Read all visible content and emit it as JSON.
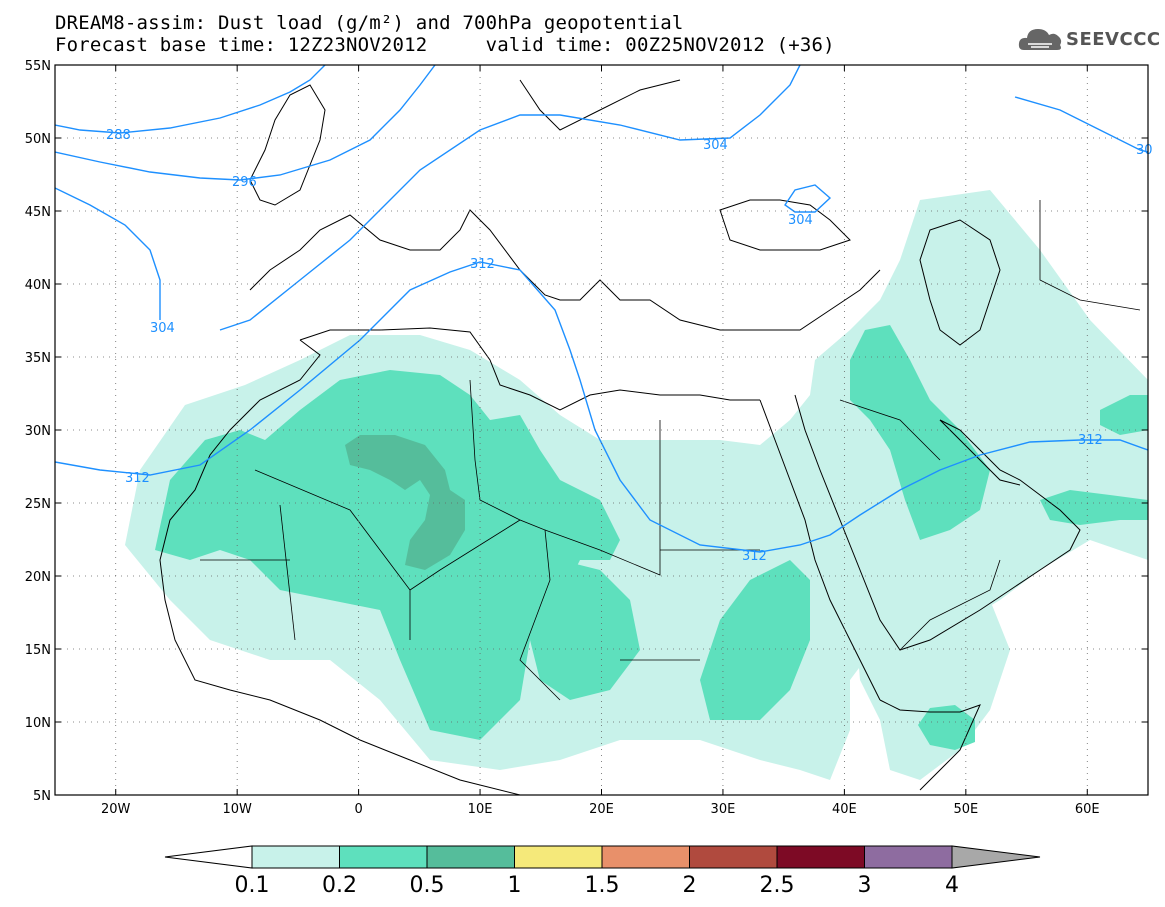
{
  "title": {
    "line1": "DREAM8-assim: Dust load (g/m²) and 700hPa geopotential",
    "line2": "Forecast base time: 12Z23NOV2012     valid time: 00Z25NOV2012 (+36)"
  },
  "logo": {
    "text": "SEEVCCC",
    "icon": "cloud-icon"
  },
  "map": {
    "lon_range": [
      -25,
      65
    ],
    "lat_range": [
      5,
      55
    ],
    "lat_ticks": [
      "55N",
      "50N",
      "45N",
      "40N",
      "35N",
      "30N",
      "25N",
      "20N",
      "15N",
      "10N",
      "5N"
    ],
    "lon_ticks": [
      "20W",
      "10W",
      "0",
      "10E",
      "20E",
      "30E",
      "40E",
      "50E",
      "60E"
    ],
    "grid": "dotted"
  },
  "contours": {
    "color": "#1e90ff",
    "labels": [
      "288",
      "296",
      "304",
      "304",
      "304",
      "312",
      "312",
      "312",
      "312",
      "30"
    ]
  },
  "colorbar": {
    "labels": [
      "0.1",
      "0.2",
      "0.5",
      "1",
      "1.5",
      "2",
      "2.5",
      "3",
      "4"
    ],
    "colors": [
      "#c8f2ea",
      "#5ee0bd",
      "#55bd9b",
      "#f5e97a",
      "#e8906a",
      "#b04a3e",
      "#7d0a25",
      "#8e6ca0",
      "#a8a8a8"
    ]
  }
}
